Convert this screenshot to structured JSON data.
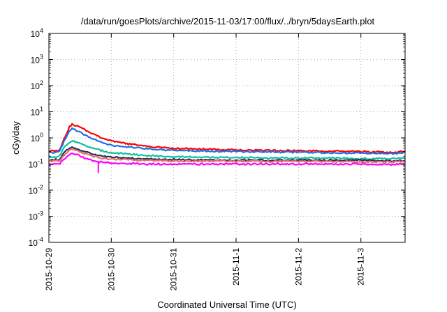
{
  "chart_data": {
    "type": "line",
    "title": "/data/run/goesPlots/archive/2015-11-03/17:00/flux/../bryn/5daysEarth.plot",
    "xlabel": "Coordinated Universal Time (UTC)",
    "ylabel": "cGy/day",
    "x_scale": "time",
    "xlim": [
      "2015-10-29T00:00",
      "2015-11-03T17:00"
    ],
    "x_ticks": [
      {
        "label": "2015-10-29",
        "value": "2015-10-29T00:00"
      },
      {
        "label": "2015-10-30",
        "value": "2015-10-30T00:00"
      },
      {
        "label": "2015-10-31",
        "value": "2015-10-31T00:00"
      },
      {
        "label": "2015-11-1",
        "value": "2015-11-01T00:00"
      },
      {
        "label": "2015-11-2",
        "value": "2015-11-02T00:00"
      },
      {
        "label": "2015-11-3",
        "value": "2015-11-03T00:00"
      }
    ],
    "y_scale": "log",
    "ylim": [
      0.0001,
      10000
    ],
    "y_ticks": [
      {
        "base": "10",
        "exp": "4",
        "value": 10000
      },
      {
        "base": "10",
        "exp": "3",
        "value": 1000
      },
      {
        "base": "10",
        "exp": "2",
        "value": 100
      },
      {
        "base": "10",
        "exp": "1",
        "value": 10
      },
      {
        "base": "10",
        "exp": "0",
        "value": 1
      },
      {
        "base": "10",
        "exp": "-1",
        "value": 0.1
      },
      {
        "base": "10",
        "exp": "-2",
        "value": 0.01
      },
      {
        "base": "10",
        "exp": "-3",
        "value": 0.001
      },
      {
        "base": "10",
        "exp": "-4",
        "value": 0.0001
      }
    ],
    "grid": true,
    "series": [
      {
        "color": "#ff0000",
        "x": [
          "2015-10-29T00:00",
          "2015-10-29T04:00",
          "2015-10-29T06:00",
          "2015-10-29T08:00",
          "2015-10-29T09:00",
          "2015-10-29T12:00",
          "2015-10-29T16:00",
          "2015-10-29T20:00",
          "2015-10-30T00:00",
          "2015-10-30T06:00",
          "2015-10-30T12:00",
          "2015-10-30T18:00",
          "2015-10-31T00:00",
          "2015-10-31T12:00",
          "2015-11-01T00:00",
          "2015-11-01T12:00",
          "2015-11-02T00:00",
          "2015-11-02T12:00",
          "2015-11-03T00:00",
          "2015-11-03T12:00",
          "2015-11-03T17:00"
        ],
        "values": [
          0.32,
          0.33,
          1.0,
          2.8,
          3.3,
          2.6,
          1.6,
          1.05,
          0.75,
          0.6,
          0.5,
          0.44,
          0.4,
          0.37,
          0.35,
          0.33,
          0.32,
          0.31,
          0.3,
          0.28,
          0.3
        ]
      },
      {
        "color": "#1e6fe6",
        "x": [
          "2015-10-29T00:00",
          "2015-10-29T04:00",
          "2015-10-29T06:00",
          "2015-10-29T08:00",
          "2015-10-29T09:00",
          "2015-10-29T12:00",
          "2015-10-29T16:00",
          "2015-10-29T20:00",
          "2015-10-30T00:00",
          "2015-10-30T06:00",
          "2015-10-30T12:00",
          "2015-10-30T18:00",
          "2015-10-31T00:00",
          "2015-10-31T12:00",
          "2015-11-01T00:00",
          "2015-11-01T12:00",
          "2015-11-02T00:00",
          "2015-11-02T12:00",
          "2015-11-03T00:00",
          "2015-11-03T12:00",
          "2015-11-03T17:00"
        ],
        "values": [
          0.27,
          0.28,
          0.8,
          2.0,
          2.3,
          1.6,
          1.0,
          0.7,
          0.52,
          0.45,
          0.4,
          0.36,
          0.33,
          0.31,
          0.3,
          0.29,
          0.28,
          0.27,
          0.26,
          0.25,
          0.27
        ]
      },
      {
        "color": "#10c0a0",
        "x": [
          "2015-10-29T00:00",
          "2015-10-29T04:00",
          "2015-10-29T06:00",
          "2015-10-29T08:00",
          "2015-10-29T09:00",
          "2015-10-29T12:00",
          "2015-10-29T16:00",
          "2015-10-29T20:00",
          "2015-10-30T00:00",
          "2015-10-30T06:00",
          "2015-10-30T12:00",
          "2015-10-30T18:00",
          "2015-10-31T00:00",
          "2015-10-31T12:00",
          "2015-11-01T00:00",
          "2015-11-01T12:00",
          "2015-11-02T00:00",
          "2015-11-02T12:00",
          "2015-11-03T00:00",
          "2015-11-03T12:00",
          "2015-11-03T17:00"
        ],
        "values": [
          0.18,
          0.19,
          0.45,
          0.7,
          0.8,
          0.6,
          0.42,
          0.33,
          0.27,
          0.24,
          0.22,
          0.2,
          0.19,
          0.18,
          0.18,
          0.17,
          0.17,
          0.17,
          0.16,
          0.16,
          0.17
        ]
      },
      {
        "color": "#303050",
        "x": [
          "2015-10-29T00:00",
          "2015-10-29T04:00",
          "2015-10-29T06:00",
          "2015-10-29T08:00",
          "2015-10-29T09:00",
          "2015-10-29T12:00",
          "2015-10-29T16:00",
          "2015-10-29T20:00",
          "2015-10-30T00:00",
          "2015-10-30T06:00",
          "2015-10-30T12:00",
          "2015-10-30T18:00",
          "2015-10-31T00:00",
          "2015-10-31T12:00",
          "2015-11-01T00:00",
          "2015-11-01T12:00",
          "2015-11-02T00:00",
          "2015-11-02T12:00",
          "2015-11-03T00:00",
          "2015-11-03T12:00",
          "2015-11-03T17:00"
        ],
        "values": [
          0.14,
          0.15,
          0.28,
          0.42,
          0.45,
          0.35,
          0.25,
          0.2,
          0.18,
          0.17,
          0.16,
          0.15,
          0.15,
          0.14,
          0.14,
          0.14,
          0.14,
          0.14,
          0.14,
          0.13,
          0.14
        ]
      },
      {
        "color": "#e87070",
        "x": [
          "2015-10-29T00:00",
          "2015-10-29T04:00",
          "2015-10-29T06:00",
          "2015-10-29T08:00",
          "2015-10-29T09:00",
          "2015-10-29T12:00",
          "2015-10-29T16:00",
          "2015-10-29T20:00",
          "2015-10-30T00:00",
          "2015-10-30T06:00",
          "2015-10-30T12:00",
          "2015-10-30T18:00",
          "2015-10-31T00:00",
          "2015-10-31T12:00",
          "2015-11-01T00:00",
          "2015-11-01T12:00",
          "2015-11-02T00:00",
          "2015-11-02T12:00",
          "2015-11-03T00:00",
          "2015-11-03T12:00",
          "2015-11-03T17:00"
        ],
        "values": [
          0.125,
          0.13,
          0.22,
          0.34,
          0.37,
          0.29,
          0.21,
          0.17,
          0.155,
          0.145,
          0.14,
          0.135,
          0.13,
          0.13,
          0.13,
          0.125,
          0.125,
          0.125,
          0.12,
          0.12,
          0.125
        ]
      },
      {
        "color": "#ff00ff",
        "x": [
          "2015-10-29T00:00",
          "2015-10-29T04:00",
          "2015-10-29T06:00",
          "2015-10-29T08:00",
          "2015-10-29T09:00",
          "2015-10-29T12:00",
          "2015-10-29T16:00",
          "2015-10-29T20:00",
          "2015-10-30T00:00",
          "2015-10-30T06:00",
          "2015-10-30T12:00",
          "2015-10-30T18:00",
          "2015-10-31T00:00",
          "2015-10-31T12:00",
          "2015-11-01T00:00",
          "2015-11-01T12:00",
          "2015-11-02T00:00",
          "2015-11-02T12:00",
          "2015-11-03T00:00",
          "2015-11-03T12:00",
          "2015-11-03T17:00"
        ],
        "values": [
          0.1,
          0.1,
          0.16,
          0.24,
          0.27,
          0.2,
          0.14,
          0.12,
          0.11,
          0.105,
          0.1,
          0.1,
          0.1,
          0.1,
          0.1,
          0.1,
          0.1,
          0.1,
          0.1,
          0.095,
          0.1
        ]
      }
    ],
    "dips": [
      {
        "x": "2015-10-29T19:00",
        "value": 0.045
      }
    ]
  }
}
